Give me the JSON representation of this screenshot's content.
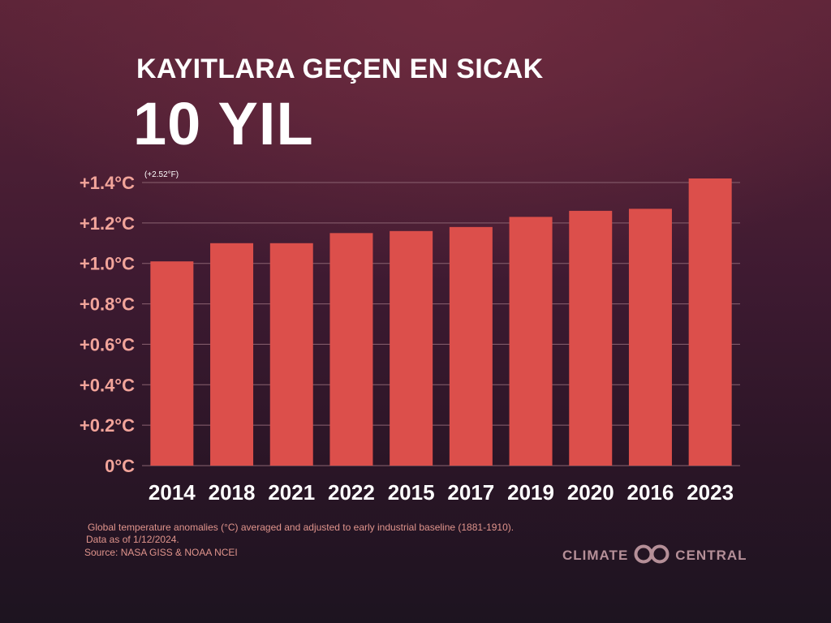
{
  "header": {
    "title_line1": "KAYITLARA GEÇEN EN SICAK",
    "title_line2": "10 YIL"
  },
  "chart_data": {
    "type": "bar",
    "categories": [
      "2014",
      "2018",
      "2021",
      "2022",
      "2015",
      "2017",
      "2019",
      "2020",
      "2016",
      "2023"
    ],
    "values": [
      1.01,
      1.1,
      1.1,
      1.15,
      1.16,
      1.18,
      1.23,
      1.26,
      1.27,
      1.42
    ],
    "y_ticks": [
      {
        "value": 0,
        "label": "0°C"
      },
      {
        "value": 0.2,
        "label": "+0.2°C"
      },
      {
        "value": 0.4,
        "label": "+0.4°C"
      },
      {
        "value": 0.6,
        "label": "+0.6°C"
      },
      {
        "value": 0.8,
        "label": "+0.8°C"
      },
      {
        "value": 1.0,
        "label": "+1.0°C"
      },
      {
        "value": 1.2,
        "label": "+1.2°C"
      },
      {
        "value": 1.4,
        "label": "+1.4°C"
      }
    ],
    "ylim": [
      0,
      1.4
    ],
    "annotation": "(+2.52°F)",
    "grid": true,
    "bar_color": "#dc4f4b",
    "grid_color": "#8a6270"
  },
  "footnotes": {
    "line1": "Global temperature anomalies (°C) averaged and adjusted to early industrial baseline (1881-1910).",
    "line2": "Data as of 1/12/2024.",
    "line3": "Source: NASA GISS & NOAA NCEI"
  },
  "logo": {
    "left_text": "CLIMATE",
    "right_text": "CENTRAL",
    "mark_icon": "climate-central-infinity-icon",
    "color": "#b58f98"
  }
}
